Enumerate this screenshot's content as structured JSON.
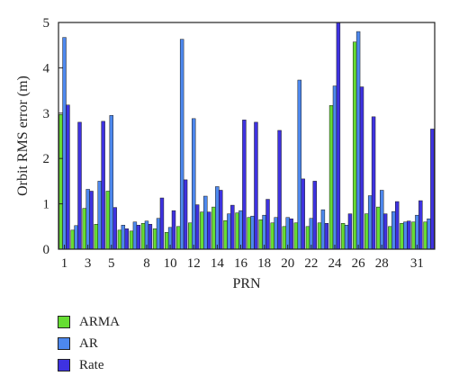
{
  "chart_data": {
    "type": "bar",
    "xlabel": "PRN",
    "ylabel": "Orbit RMS error (m)",
    "ylim": [
      0,
      5
    ],
    "yticks": [
      "0",
      "1",
      "2",
      "3",
      "4",
      "5"
    ],
    "xticks": [
      "1",
      "3",
      "5",
      "8",
      "10",
      "12",
      "14",
      "16",
      "18",
      "20",
      "22",
      "24",
      "26",
      "28",
      "31"
    ],
    "categories": [
      "1",
      "2",
      "3",
      "4",
      "5",
      "6",
      "7",
      "8",
      "9",
      "10",
      "11",
      "12",
      "13",
      "14",
      "15",
      "16",
      "17",
      "18",
      "19",
      "20",
      "21",
      "22",
      "23",
      "24",
      "25",
      "26",
      "27",
      "28",
      "29",
      "30",
      "31",
      "32"
    ],
    "legend_position": "below",
    "grid": false,
    "series": [
      {
        "name": "ARMA",
        "color": "#66dd33",
        "values": [
          2.97,
          0.42,
          0.9,
          0.55,
          1.28,
          0.42,
          0.4,
          0.57,
          0.45,
          0.37,
          0.5,
          0.58,
          0.82,
          0.93,
          0.63,
          0.8,
          0.7,
          0.65,
          0.58,
          0.5,
          0.58,
          0.5,
          0.58,
          3.17,
          0.57,
          4.57,
          0.78,
          0.93,
          0.5,
          0.57,
          0.6,
          0.6
        ]
      },
      {
        "name": "AR",
        "color": "#4d88ee",
        "values": [
          4.67,
          0.52,
          1.32,
          1.5,
          2.95,
          0.53,
          0.6,
          0.62,
          0.68,
          0.48,
          4.63,
          2.88,
          1.17,
          1.38,
          0.78,
          0.85,
          0.73,
          0.75,
          0.7,
          0.7,
          3.73,
          0.68,
          0.87,
          3.6,
          0.53,
          4.8,
          1.18,
          1.3,
          0.83,
          0.6,
          0.75,
          0.67
        ]
      },
      {
        "name": "Rate",
        "color": "#3e32e0",
        "values": [
          3.18,
          2.8,
          1.28,
          2.82,
          0.92,
          0.45,
          0.53,
          0.55,
          1.13,
          0.85,
          1.53,
          0.98,
          0.82,
          1.3,
          0.97,
          2.85,
          2.8,
          1.1,
          2.62,
          0.67,
          1.55,
          1.5,
          0.57,
          5.0,
          0.78,
          3.58,
          2.92,
          0.78,
          1.05,
          0.62,
          1.07,
          2.65
        ]
      }
    ]
  }
}
